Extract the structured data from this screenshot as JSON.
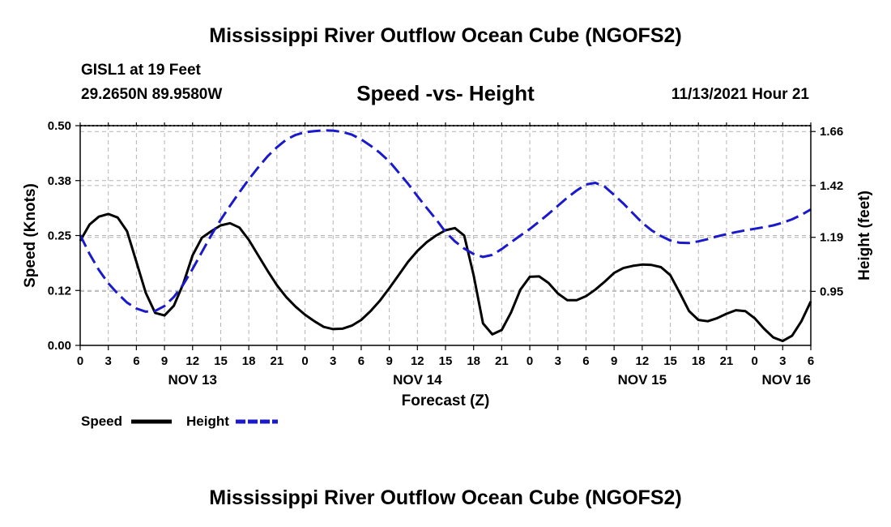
{
  "header": {
    "title": "Mississippi River Outflow Ocean Cube (NGOFS2)",
    "station": "GISL1 at 19 Feet",
    "coords": "29.2650N  89.9580W",
    "subtitle": "Speed -vs- Height",
    "datetime": "11/13/2021 Hour 21"
  },
  "footer": {
    "title": "Mississippi River Outflow Ocean Cube (NGOFS2)"
  },
  "legend": {
    "speed_label": "Speed",
    "height_label": "Height"
  },
  "colors": {
    "speed": "#000000",
    "height": "#1a1acc",
    "grid": "#b4b4b4"
  },
  "chart_data": {
    "type": "line",
    "title": "Speed -vs- Height",
    "xlabel": "Forecast (Z)",
    "ylabel": "Speed (Knots)",
    "y2label": "Height (feet)",
    "x_unit": "forecast hours from Nov 13 00Z",
    "xlim": [
      0,
      78
    ],
    "ylim": [
      0,
      0.5
    ],
    "y2lim": [
      0.71,
      1.686
    ],
    "x_ticks": [
      0,
      3,
      6,
      9,
      12,
      15,
      18,
      21,
      24,
      27,
      30,
      33,
      36,
      39,
      42,
      45,
      48,
      51,
      54,
      57,
      60,
      63,
      66,
      69,
      72,
      75,
      78
    ],
    "x_tick_labels": [
      "0",
      "3",
      "6",
      "9",
      "12",
      "15",
      "18",
      "21",
      "0",
      "3",
      "6",
      "9",
      "12",
      "15",
      "18",
      "21",
      "0",
      "3",
      "6",
      "9",
      "12",
      "15",
      "18",
      "21",
      "0",
      "3",
      "6"
    ],
    "day_labels": [
      {
        "x": 12,
        "label": "NOV 13"
      },
      {
        "x": 36,
        "label": "NOV 14"
      },
      {
        "x": 60,
        "label": "NOV 15"
      },
      {
        "x": 78,
        "label": "NOV 16"
      }
    ],
    "y_ticks": [
      0,
      0.125,
      0.25,
      0.375,
      0.5
    ],
    "y_tick_labels": [
      "0.00",
      "0.12",
      "0.25",
      "0.38",
      "0.50"
    ],
    "y2_ticks": [
      0.95,
      1.19,
      1.42,
      1.66
    ],
    "y2_tick_labels": [
      "0.95",
      "1.19",
      "1.42",
      "1.66"
    ],
    "grid": true,
    "legend": "bottom-left",
    "series": [
      {
        "name": "Speed",
        "axis": "left",
        "x": [
          0,
          1,
          2,
          3,
          4,
          5,
          6,
          7,
          8,
          9,
          10,
          11,
          12,
          13,
          14,
          15,
          16,
          17,
          18,
          19,
          20,
          21,
          22,
          23,
          24,
          25,
          26,
          27,
          28,
          29,
          30,
          31,
          32,
          33,
          34,
          35,
          36,
          37,
          38,
          39,
          40,
          41,
          42,
          43,
          44,
          45,
          46,
          47,
          48,
          49,
          50,
          51,
          52,
          53,
          54,
          55,
          56,
          57,
          58,
          59,
          60,
          61,
          62,
          63,
          64,
          65,
          66,
          67,
          68,
          69,
          70,
          71,
          72,
          73,
          74,
          75,
          76,
          77,
          78
        ],
        "values": [
          0.238,
          0.275,
          0.293,
          0.299,
          0.291,
          0.26,
          0.19,
          0.12,
          0.074,
          0.068,
          0.09,
          0.14,
          0.205,
          0.245,
          0.26,
          0.273,
          0.278,
          0.268,
          0.24,
          0.205,
          0.17,
          0.137,
          0.11,
          0.088,
          0.07,
          0.055,
          0.042,
          0.037,
          0.038,
          0.045,
          0.058,
          0.078,
          0.102,
          0.13,
          0.16,
          0.19,
          0.215,
          0.235,
          0.25,
          0.262,
          0.267,
          0.25,
          0.16,
          0.05,
          0.025,
          0.035,
          0.075,
          0.127,
          0.156,
          0.157,
          0.142,
          0.118,
          0.103,
          0.103,
          0.112,
          0.127,
          0.145,
          0.165,
          0.176,
          0.181,
          0.184,
          0.183,
          0.178,
          0.16,
          0.12,
          0.078,
          0.058,
          0.055,
          0.062,
          0.072,
          0.08,
          0.078,
          0.062,
          0.038,
          0.018,
          0.01,
          0.022,
          0.055,
          0.1
        ]
      },
      {
        "name": "Height",
        "axis": "right",
        "x": [
          0,
          1,
          2,
          3,
          4,
          5,
          6,
          7,
          8,
          9,
          10,
          11,
          12,
          13,
          14,
          15,
          16,
          17,
          18,
          19,
          20,
          21,
          22,
          23,
          24,
          25,
          26,
          27,
          28,
          29,
          30,
          31,
          32,
          33,
          34,
          35,
          36,
          37,
          38,
          39,
          40,
          41,
          42,
          43,
          44,
          45,
          46,
          47,
          48,
          49,
          50,
          51,
          52,
          53,
          54,
          55,
          56,
          57,
          58,
          59,
          60,
          61,
          62,
          63,
          64,
          65,
          66,
          67,
          68,
          69,
          70,
          71,
          72,
          73,
          74,
          75,
          76,
          77,
          78
        ],
        "values": [
          1.2,
          1.116,
          1.045,
          0.986,
          0.94,
          0.9,
          0.874,
          0.86,
          0.863,
          0.885,
          0.925,
          0.98,
          1.05,
          1.125,
          1.2,
          1.268,
          1.33,
          1.39,
          1.448,
          1.5,
          1.55,
          1.59,
          1.624,
          1.645,
          1.657,
          1.662,
          1.665,
          1.664,
          1.658,
          1.646,
          1.625,
          1.597,
          1.565,
          1.527,
          1.478,
          1.428,
          1.373,
          1.32,
          1.27,
          1.214,
          1.172,
          1.14,
          1.116,
          1.103,
          1.112,
          1.138,
          1.168,
          1.198,
          1.227,
          1.26,
          1.294,
          1.33,
          1.366,
          1.398,
          1.425,
          1.432,
          1.415,
          1.378,
          1.34,
          1.297,
          1.255,
          1.221,
          1.196,
          1.176,
          1.166,
          1.165,
          1.172,
          1.182,
          1.194,
          1.204,
          1.213,
          1.221,
          1.228,
          1.235,
          1.243,
          1.255,
          1.27,
          1.29,
          1.314
        ]
      }
    ]
  }
}
